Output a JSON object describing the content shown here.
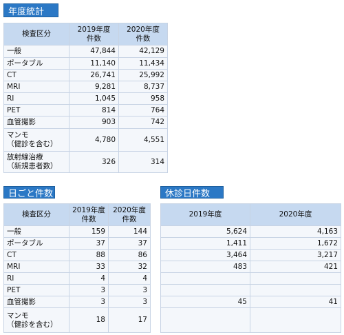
{
  "sections": [
    {
      "title": "年度統計",
      "table": {
        "header": [
          "検査区分",
          "2019年度\n件数",
          "2020年度\n件数"
        ],
        "rows": [
          [
            "一般",
            "47,844",
            "42,129"
          ],
          [
            "ポータブル",
            "11,140",
            "11,434"
          ],
          [
            "CT",
            "26,741",
            "25,992"
          ],
          [
            "MRI",
            "9,281",
            "8,737"
          ],
          [
            "RI",
            "1,045",
            "958"
          ],
          [
            "PET",
            "814",
            "764"
          ],
          [
            "血管撮影",
            "903",
            "742"
          ],
          [
            "マンモ\n（健診を含む）",
            "4,780",
            "4,551"
          ],
          [
            "放射線治療\n（新規患者数）",
            "326",
            "314"
          ]
        ]
      }
    },
    {
      "title": "日ごと件数",
      "table": {
        "header": [
          "検査区分",
          "2019年度\n件数",
          "2020年度\n件数"
        ],
        "rows": [
          [
            "一般",
            "159",
            "144"
          ],
          [
            "ポータブル",
            "37",
            "37"
          ],
          [
            "CT",
            "88",
            "86"
          ],
          [
            "MRI",
            "33",
            "32"
          ],
          [
            "RI",
            "4",
            "4"
          ],
          [
            "PET",
            "3",
            "3"
          ],
          [
            "血管撮影",
            "3",
            "3"
          ],
          [
            "マンモ\n（健診を含む）",
            "18",
            "17"
          ]
        ]
      }
    },
    {
      "title": "休診日件数",
      "table": {
        "header": [
          "2019年度",
          "2020年度"
        ],
        "rows": [
          [
            "5,624",
            "4,163"
          ],
          [
            "1,411",
            "1,672"
          ],
          [
            "3,464",
            "3,217"
          ],
          [
            "483",
            "421"
          ],
          [
            null,
            null
          ],
          [
            null,
            null
          ],
          [
            "45",
            "41"
          ],
          [
            null,
            null
          ]
        ]
      }
    }
  ]
}
